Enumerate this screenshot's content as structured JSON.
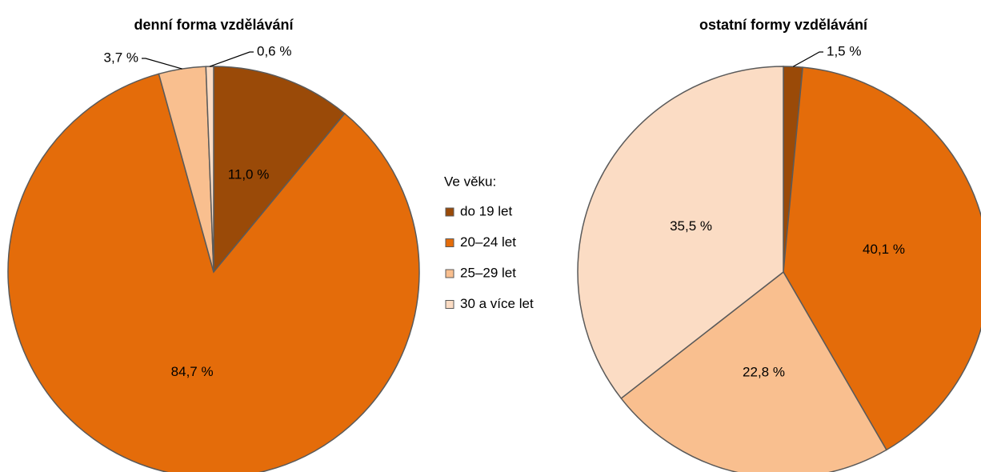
{
  "legend": {
    "title": "Ve věku:",
    "categories": [
      "do 19 let",
      "20–24 let",
      "25–29 let",
      "30 a více let"
    ],
    "colors": [
      "#9a4a08",
      "#e46c0a",
      "#f9bf8f",
      "#fbdcc4"
    ]
  },
  "chart_data": [
    {
      "type": "pie",
      "title": "denní forma vzdělávání",
      "values": [
        11.0,
        84.7,
        3.7,
        0.6
      ],
      "value_labels": [
        "11,0 %",
        "84,7 %",
        "3,7 %",
        "0,6 %"
      ]
    },
    {
      "type": "pie",
      "title": "ostatní formy vzdělávání",
      "values": [
        1.5,
        40.1,
        22.8,
        35.5
      ],
      "value_labels": [
        "1,5 %",
        "40,1 %",
        "22,8 %",
        "35,5 %"
      ]
    }
  ]
}
